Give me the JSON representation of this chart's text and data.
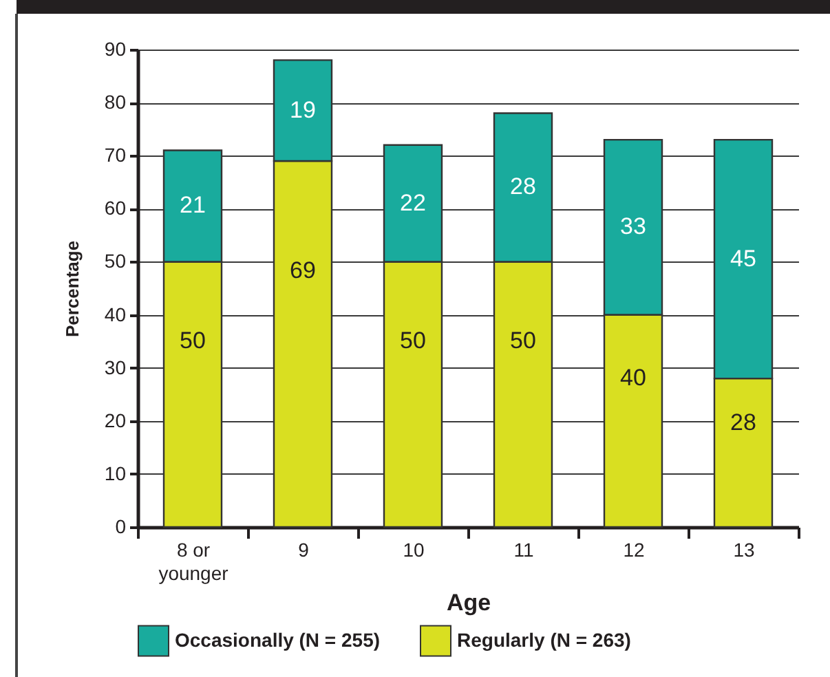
{
  "chart_data": {
    "type": "bar",
    "stacked": true,
    "categories": [
      "8 or younger",
      "9",
      "10",
      "11",
      "12",
      "13"
    ],
    "series": [
      {
        "name": "Regularly (N = 263)",
        "color": "#d9df21",
        "values": [
          50,
          69,
          50,
          50,
          40,
          28
        ]
      },
      {
        "name": "Occasionally (N = 255)",
        "color": "#19ab9d",
        "values": [
          21,
          19,
          22,
          28,
          33,
          45
        ]
      }
    ],
    "xlabel": "Age",
    "ylabel": "Percentage",
    "ylim": [
      0,
      90
    ],
    "yticks": [
      0,
      10,
      20,
      30,
      40,
      50,
      60,
      70,
      80,
      90
    ],
    "grid": "y",
    "legend": "bottom",
    "data_labels": true
  }
}
